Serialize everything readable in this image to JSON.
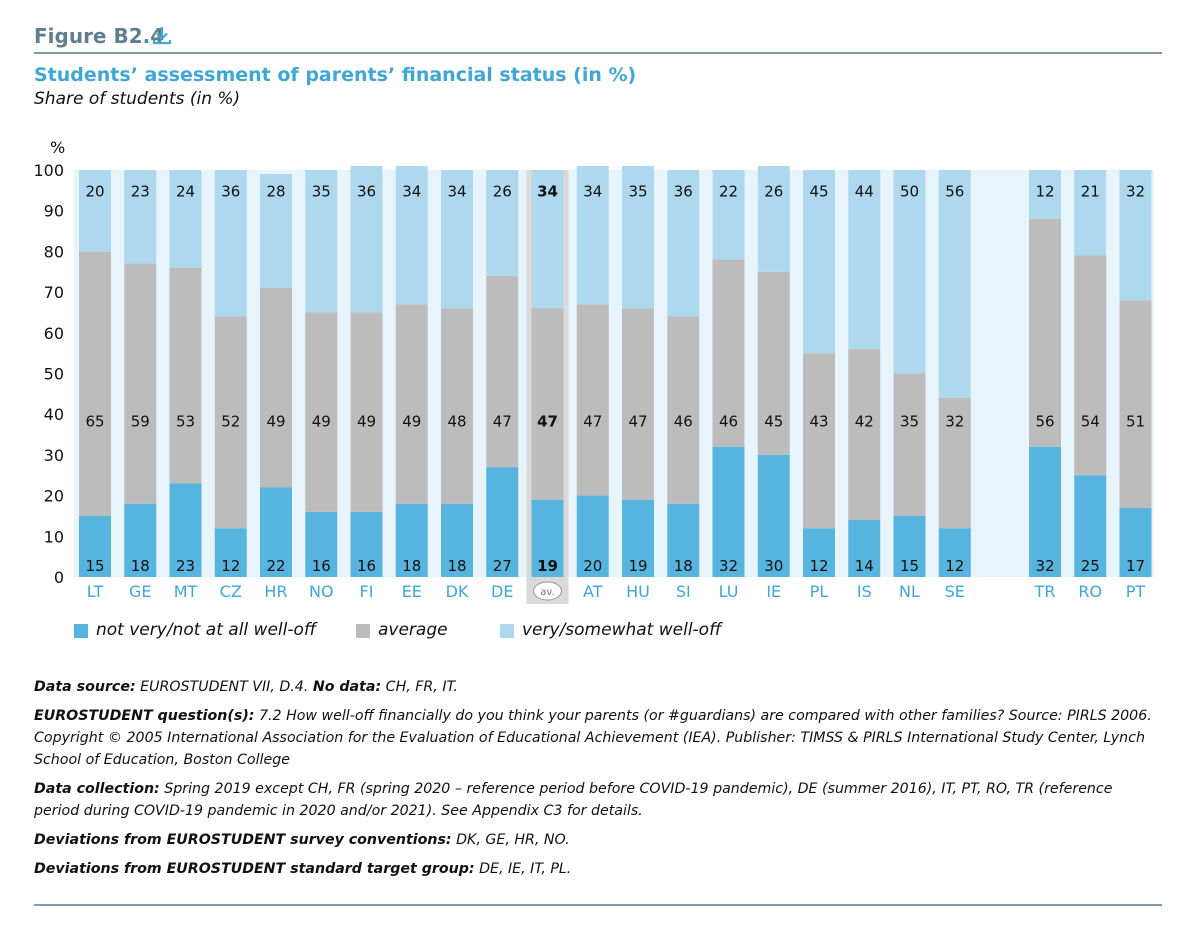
{
  "figure": {
    "label": "Figure B2.4",
    "download_icon": "download-icon"
  },
  "title": "Students’ assessment of parents’ financial status (in %)",
  "subtitle": "Share of students (in %)",
  "colors": {
    "not_well_off": "#56b4de",
    "average": "#bcbcbc",
    "well_off": "#aed8ee",
    "plot_bg": "#e8f4fb",
    "avg_highlight": "#dadada",
    "axis_label": "#3fa6d6"
  },
  "chart_data": {
    "type": "bar",
    "stacked": true,
    "y_unit_label": "%",
    "ylim": [
      0,
      100
    ],
    "yticks": [
      0,
      10,
      20,
      30,
      40,
      50,
      60,
      70,
      80,
      90,
      100
    ],
    "categories": [
      "LT",
      "GE",
      "MT",
      "CZ",
      "HR",
      "NO",
      "FI",
      "EE",
      "DK",
      "DE",
      "av.",
      "AT",
      "HU",
      "SI",
      "LU",
      "IE",
      "PL",
      "IS",
      "NL",
      "SE",
      "TR",
      "RO",
      "PT"
    ],
    "highlight_category": "av.",
    "group_gap_after": "SE",
    "series": [
      {
        "name": "not very/not at all well-off",
        "values": [
          15,
          18,
          23,
          12,
          22,
          16,
          16,
          18,
          18,
          27,
          19,
          20,
          19,
          18,
          32,
          30,
          12,
          14,
          15,
          12,
          32,
          25,
          17
        ]
      },
      {
        "name": "average",
        "values": [
          65,
          59,
          53,
          52,
          49,
          49,
          49,
          49,
          48,
          47,
          47,
          47,
          47,
          46,
          46,
          45,
          43,
          42,
          35,
          32,
          56,
          54,
          51
        ]
      },
      {
        "name": "very/somewhat well-off",
        "values": [
          20,
          23,
          24,
          36,
          28,
          35,
          36,
          34,
          34,
          26,
          34,
          34,
          35,
          36,
          22,
          26,
          45,
          44,
          50,
          56,
          12,
          21,
          32
        ]
      }
    ],
    "legend_position": "bottom-left",
    "grid": false
  },
  "notes": [
    {
      "label": "Data source:",
      "text": " EUROSTUDENT VII, D.4. ",
      "label2": "No data:",
      "text2": " CH, FR, IT."
    },
    {
      "label": "EUROSTUDENT question(s):",
      "text": " 7.2 How well-off financially do you think your parents (or #guardians) are compared with other families? Source: PIRLS 2006. Copyright © 2005 International Association for the Evaluation of Educational Achievement (IEA). Publisher: TIMSS & PIRLS International Study Center, Lynch School of Education, Boston College"
    },
    {
      "label": "Data collection:",
      "text": " Spring 2019 except CH, FR (spring 2020 – reference period before COVID-19 pandemic), DE (summer 2016), IT, PT, RO, TR (reference period during COVID-19 pandemic in 2020 and/or 2021). See Appendix C3 for details."
    },
    {
      "label": "Deviations from EUROSTUDENT survey conventions:",
      "text": " DK, GE, HR, NO."
    },
    {
      "label": "Deviations from EUROSTUDENT standard target group:",
      "text": " DE, IE, IT, PL."
    }
  ]
}
